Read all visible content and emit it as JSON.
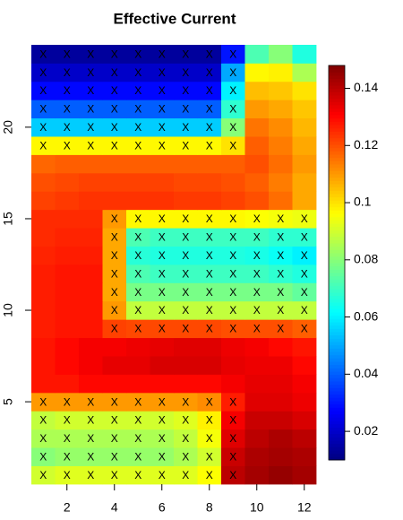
{
  "chart_data": {
    "type": "heatmap",
    "title": "Effective Current",
    "xlim": [
      0.5,
      12.5
    ],
    "ylim": [
      0.5,
      24.5
    ],
    "xticks": [
      2,
      4,
      6,
      8,
      10,
      12
    ],
    "yticks": [
      5,
      10,
      15,
      20
    ],
    "zlim": [
      0.01,
      0.148
    ],
    "zticks": [
      0.02,
      0.04,
      0.06,
      0.08,
      0.1,
      0.12,
      0.14
    ],
    "colormap": "jet",
    "marker": "X",
    "z": [
      [
        0.09,
        0.092,
        0.092,
        0.092,
        0.092,
        0.092,
        0.092,
        0.096,
        0.14,
        0.143,
        0.145,
        0.143
      ],
      [
        0.08,
        0.082,
        0.082,
        0.082,
        0.082,
        0.082,
        0.085,
        0.09,
        0.138,
        0.142,
        0.143,
        0.142
      ],
      [
        0.085,
        0.085,
        0.085,
        0.085,
        0.085,
        0.085,
        0.088,
        0.095,
        0.135,
        0.14,
        0.142,
        0.14
      ],
      [
        0.088,
        0.09,
        0.09,
        0.09,
        0.09,
        0.09,
        0.092,
        0.098,
        0.132,
        0.138,
        0.138,
        0.136
      ],
      [
        0.11,
        0.11,
        0.11,
        0.11,
        0.11,
        0.11,
        0.11,
        0.112,
        0.127,
        0.135,
        0.135,
        0.133
      ],
      [
        0.128,
        0.128,
        0.13,
        0.13,
        0.13,
        0.13,
        0.13,
        0.13,
        0.132,
        0.134,
        0.134,
        0.132
      ],
      [
        0.128,
        0.13,
        0.132,
        0.134,
        0.134,
        0.136,
        0.136,
        0.136,
        0.134,
        0.133,
        0.133,
        0.13
      ],
      [
        0.128,
        0.13,
        0.132,
        0.132,
        0.133,
        0.134,
        0.135,
        0.135,
        0.133,
        0.132,
        0.13,
        0.128
      ],
      [
        0.127,
        0.128,
        0.128,
        0.122,
        0.121,
        0.121,
        0.121,
        0.121,
        0.12,
        0.12,
        0.12,
        0.118
      ],
      [
        0.127,
        0.128,
        0.128,
        0.11,
        0.088,
        0.088,
        0.088,
        0.088,
        0.088,
        0.088,
        0.088,
        0.088
      ],
      [
        0.127,
        0.128,
        0.128,
        0.108,
        0.078,
        0.078,
        0.078,
        0.078,
        0.078,
        0.078,
        0.078,
        0.075
      ],
      [
        0.127,
        0.128,
        0.128,
        0.108,
        0.072,
        0.07,
        0.07,
        0.07,
        0.07,
        0.07,
        0.068,
        0.066
      ],
      [
        0.126,
        0.127,
        0.127,
        0.108,
        0.067,
        0.066,
        0.066,
        0.066,
        0.066,
        0.065,
        0.063,
        0.06
      ],
      [
        0.125,
        0.126,
        0.126,
        0.108,
        0.072,
        0.07,
        0.07,
        0.07,
        0.07,
        0.07,
        0.068,
        0.068
      ],
      [
        0.125,
        0.125,
        0.125,
        0.11,
        0.097,
        0.097,
        0.097,
        0.097,
        0.097,
        0.096,
        0.095,
        0.094
      ],
      [
        0.122,
        0.123,
        0.124,
        0.124,
        0.124,
        0.124,
        0.123,
        0.123,
        0.122,
        0.12,
        0.116,
        0.108
      ],
      [
        0.12,
        0.121,
        0.122,
        0.122,
        0.122,
        0.122,
        0.121,
        0.121,
        0.12,
        0.118,
        0.114,
        0.108
      ],
      [
        0.117,
        0.118,
        0.118,
        0.118,
        0.118,
        0.118,
        0.118,
        0.118,
        0.118,
        0.12,
        0.116,
        0.11
      ],
      [
        0.097,
        0.097,
        0.097,
        0.097,
        0.097,
        0.097,
        0.097,
        0.097,
        0.1,
        0.118,
        0.114,
        0.108
      ],
      [
        0.055,
        0.055,
        0.055,
        0.055,
        0.055,
        0.055,
        0.055,
        0.055,
        0.08,
        0.115,
        0.112,
        0.106
      ],
      [
        0.04,
        0.04,
        0.04,
        0.04,
        0.04,
        0.04,
        0.04,
        0.04,
        0.068,
        0.11,
        0.108,
        0.104
      ],
      [
        0.028,
        0.028,
        0.028,
        0.028,
        0.028,
        0.028,
        0.028,
        0.028,
        0.06,
        0.105,
        0.104,
        0.1
      ],
      [
        0.02,
        0.02,
        0.02,
        0.02,
        0.02,
        0.02,
        0.02,
        0.02,
        0.05,
        0.097,
        0.098,
        0.085
      ],
      [
        0.014,
        0.014,
        0.014,
        0.014,
        0.014,
        0.014,
        0.014,
        0.014,
        0.03,
        0.072,
        0.08,
        0.066
      ]
    ],
    "marked": [
      [
        1,
        1,
        1,
        1,
        1,
        1,
        1,
        1,
        1,
        0,
        0,
        0
      ],
      [
        1,
        1,
        1,
        1,
        1,
        1,
        1,
        1,
        1,
        0,
        0,
        0
      ],
      [
        1,
        1,
        1,
        1,
        1,
        1,
        1,
        1,
        1,
        0,
        0,
        0
      ],
      [
        1,
        1,
        1,
        1,
        1,
        1,
        1,
        1,
        1,
        0,
        0,
        0
      ],
      [
        1,
        1,
        1,
        1,
        1,
        1,
        1,
        1,
        1,
        0,
        0,
        0
      ],
      [
        0,
        0,
        0,
        0,
        0,
        0,
        0,
        0,
        0,
        0,
        0,
        0
      ],
      [
        0,
        0,
        0,
        0,
        0,
        0,
        0,
        0,
        0,
        0,
        0,
        0
      ],
      [
        0,
        0,
        0,
        0,
        0,
        0,
        0,
        0,
        0,
        0,
        0,
        0
      ],
      [
        0,
        0,
        0,
        1,
        1,
        1,
        1,
        1,
        1,
        1,
        1,
        1
      ],
      [
        0,
        0,
        0,
        1,
        1,
        1,
        1,
        1,
        1,
        1,
        1,
        1
      ],
      [
        0,
        0,
        0,
        1,
        1,
        1,
        1,
        1,
        1,
        1,
        1,
        1
      ],
      [
        0,
        0,
        0,
        1,
        1,
        1,
        1,
        1,
        1,
        1,
        1,
        1
      ],
      [
        0,
        0,
        0,
        1,
        1,
        1,
        1,
        1,
        1,
        1,
        1,
        1
      ],
      [
        0,
        0,
        0,
        1,
        1,
        1,
        1,
        1,
        1,
        1,
        1,
        1
      ],
      [
        0,
        0,
        0,
        1,
        1,
        1,
        1,
        1,
        1,
        1,
        1,
        1
      ],
      [
        0,
        0,
        0,
        0,
        0,
        0,
        0,
        0,
        0,
        0,
        0,
        0
      ],
      [
        0,
        0,
        0,
        0,
        0,
        0,
        0,
        0,
        0,
        0,
        0,
        0
      ],
      [
        0,
        0,
        0,
        0,
        0,
        0,
        0,
        0,
        0,
        0,
        0,
        0
      ],
      [
        1,
        1,
        1,
        1,
        1,
        1,
        1,
        1,
        1,
        0,
        0,
        0
      ],
      [
        1,
        1,
        1,
        1,
        1,
        1,
        1,
        1,
        1,
        0,
        0,
        0
      ],
      [
        1,
        1,
        1,
        1,
        1,
        1,
        1,
        1,
        1,
        0,
        0,
        0
      ],
      [
        1,
        1,
        1,
        1,
        1,
        1,
        1,
        1,
        1,
        0,
        0,
        0
      ],
      [
        1,
        1,
        1,
        1,
        1,
        1,
        1,
        1,
        1,
        0,
        0,
        0
      ],
      [
        1,
        1,
        1,
        1,
        1,
        1,
        1,
        1,
        1,
        0,
        0,
        0
      ]
    ]
  }
}
